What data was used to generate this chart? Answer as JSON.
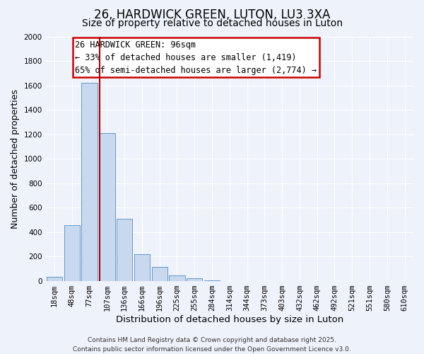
{
  "title": "26, HARDWICK GREEN, LUTON, LU3 3XA",
  "subtitle": "Size of property relative to detached houses in Luton",
  "xlabel": "Distribution of detached houses by size in Luton",
  "ylabel": "Number of detached properties",
  "bar_color": "#c8d8ee",
  "bar_edge_color": "#6699cc",
  "background_color": "#eef2fa",
  "grid_color": "#ffffff",
  "categories": [
    "18sqm",
    "48sqm",
    "77sqm",
    "107sqm",
    "136sqm",
    "166sqm",
    "196sqm",
    "225sqm",
    "255sqm",
    "284sqm",
    "314sqm",
    "344sqm",
    "373sqm",
    "403sqm",
    "432sqm",
    "462sqm",
    "492sqm",
    "521sqm",
    "551sqm",
    "580sqm",
    "610sqm"
  ],
  "values": [
    35,
    455,
    1620,
    1210,
    510,
    220,
    115,
    45,
    20,
    5,
    0,
    0,
    0,
    0,
    0,
    0,
    0,
    0,
    0,
    0,
    0
  ],
  "ylim": [
    0,
    2000
  ],
  "yticks": [
    0,
    200,
    400,
    600,
    800,
    1000,
    1200,
    1400,
    1600,
    1800,
    2000
  ],
  "vline_x": 2.57,
  "vline_color": "#aa0000",
  "annotation_title": "26 HARDWICK GREEN: 96sqm",
  "annotation_line1": "← 33% of detached houses are smaller (1,419)",
  "annotation_line2": "65% of semi-detached houses are larger (2,774) →",
  "annotation_box_color": "#ffffff",
  "annotation_box_edge": "#cc0000",
  "footer_line1": "Contains HM Land Registry data © Crown copyright and database right 2025.",
  "footer_line2": "Contains public sector information licensed under the Open Government Licence v3.0.",
  "title_fontsize": 12,
  "subtitle_fontsize": 10,
  "xlabel_fontsize": 9.5,
  "ylabel_fontsize": 9,
  "tick_fontsize": 7.5,
  "annotation_fontsize": 8.5,
  "footer_fontsize": 6.5
}
